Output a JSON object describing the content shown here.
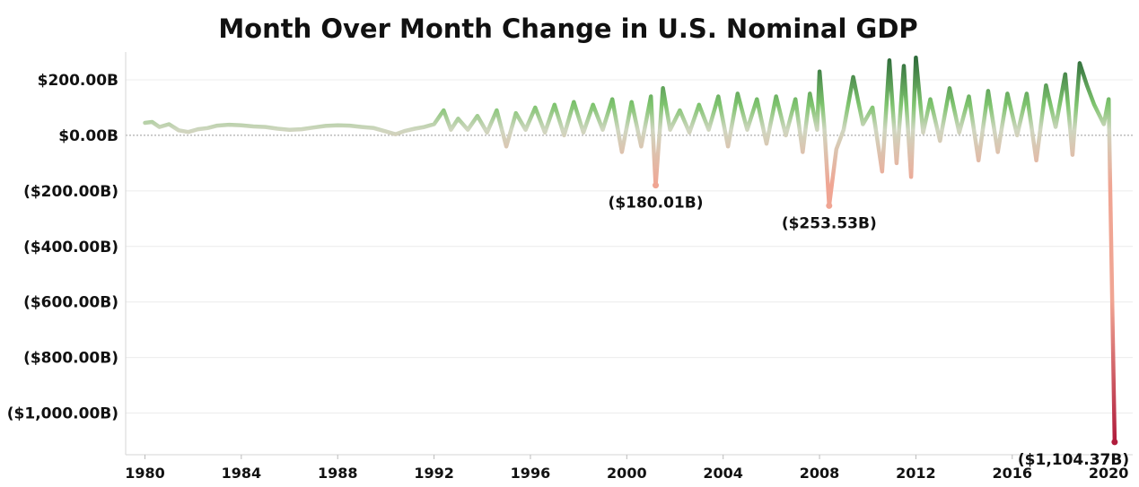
{
  "chart_data": {
    "type": "line",
    "title": "Month Over Month Change in U.S. Nominal GDP",
    "ylabel": "",
    "xlabel": "",
    "ylim": [
      -1150,
      300
    ],
    "xlim": [
      1979.2,
      2021.0
    ],
    "y_ticks": [
      200,
      0,
      -200,
      -400,
      -600,
      -800,
      -1000
    ],
    "y_tick_labels": [
      "$200.00B",
      "$0.00B",
      "($200.00B)",
      "($400.00B)",
      "($600.00B)",
      "($800.00B)",
      "($1,000.00B)"
    ],
    "x_ticks": [
      1980,
      1984,
      1988,
      1992,
      1996,
      2000,
      2004,
      2008,
      2012,
      2016,
      2020
    ],
    "x_tick_labels": [
      "1980",
      "1984",
      "1988",
      "1992",
      "1996",
      "2000",
      "2004",
      "2008",
      "2012",
      "2016",
      "2020"
    ],
    "grid": true,
    "color_scale": {
      "positive_high": "#2e6b3a",
      "positive": "#7ec46e",
      "near_zero": "#cfd6c0",
      "negative": "#f0a593",
      "extreme_negative": "#b01c3c"
    },
    "series": [
      {
        "values": [
          [
            1980.0,
            45
          ],
          [
            1980.3,
            48
          ],
          [
            1980.6,
            30
          ],
          [
            1981.0,
            40
          ],
          [
            1981.4,
            18
          ],
          [
            1981.8,
            12
          ],
          [
            1982.2,
            22
          ],
          [
            1982.6,
            26
          ],
          [
            1983.0,
            35
          ],
          [
            1983.5,
            38
          ],
          [
            1984.0,
            36
          ],
          [
            1984.5,
            32
          ],
          [
            1985.0,
            30
          ],
          [
            1985.5,
            24
          ],
          [
            1986.0,
            20
          ],
          [
            1986.5,
            22
          ],
          [
            1987.0,
            28
          ],
          [
            1987.5,
            34
          ],
          [
            1988.0,
            36
          ],
          [
            1988.5,
            35
          ],
          [
            1989.0,
            30
          ],
          [
            1989.5,
            26
          ],
          [
            1990.0,
            14
          ],
          [
            1990.4,
            4
          ],
          [
            1990.8,
            16
          ],
          [
            1991.2,
            24
          ],
          [
            1991.6,
            30
          ],
          [
            1992.0,
            40
          ],
          [
            1992.4,
            90
          ],
          [
            1992.7,
            20
          ],
          [
            1993.0,
            60
          ],
          [
            1993.4,
            20
          ],
          [
            1993.8,
            70
          ],
          [
            1994.2,
            10
          ],
          [
            1994.6,
            90
          ],
          [
            1995.0,
            -40
          ],
          [
            1995.4,
            80
          ],
          [
            1995.8,
            20
          ],
          [
            1996.2,
            100
          ],
          [
            1996.6,
            10
          ],
          [
            1997.0,
            110
          ],
          [
            1997.4,
            0
          ],
          [
            1997.8,
            120
          ],
          [
            1998.2,
            10
          ],
          [
            1998.6,
            110
          ],
          [
            1999.0,
            20
          ],
          [
            1999.4,
            130
          ],
          [
            1999.8,
            -60
          ],
          [
            2000.2,
            120
          ],
          [
            2000.6,
            -40
          ],
          [
            2001.0,
            140
          ],
          [
            2001.2,
            -180.01
          ],
          [
            2001.5,
            170
          ],
          [
            2001.8,
            20
          ],
          [
            2002.2,
            90
          ],
          [
            2002.6,
            10
          ],
          [
            2003.0,
            110
          ],
          [
            2003.4,
            20
          ],
          [
            2003.8,
            140
          ],
          [
            2004.2,
            -40
          ],
          [
            2004.6,
            150
          ],
          [
            2005.0,
            20
          ],
          [
            2005.4,
            130
          ],
          [
            2005.8,
            -30
          ],
          [
            2006.2,
            140
          ],
          [
            2006.6,
            0
          ],
          [
            2007.0,
            130
          ],
          [
            2007.3,
            -60
          ],
          [
            2007.6,
            150
          ],
          [
            2007.9,
            20
          ],
          [
            2008.0,
            230
          ],
          [
            2008.2,
            30
          ],
          [
            2008.4,
            -253.53
          ],
          [
            2008.7,
            -50
          ],
          [
            2009.0,
            20
          ],
          [
            2009.4,
            210
          ],
          [
            2009.8,
            40
          ],
          [
            2010.2,
            100
          ],
          [
            2010.6,
            -130
          ],
          [
            2010.9,
            270
          ],
          [
            2011.2,
            -100
          ],
          [
            2011.5,
            250
          ],
          [
            2011.8,
            -150
          ],
          [
            2012.0,
            280
          ],
          [
            2012.3,
            10
          ],
          [
            2012.6,
            130
          ],
          [
            2013.0,
            -20
          ],
          [
            2013.4,
            170
          ],
          [
            2013.8,
            10
          ],
          [
            2014.2,
            140
          ],
          [
            2014.6,
            -90
          ],
          [
            2015.0,
            160
          ],
          [
            2015.4,
            -60
          ],
          [
            2015.8,
            150
          ],
          [
            2016.2,
            0
          ],
          [
            2016.6,
            150
          ],
          [
            2017.0,
            -90
          ],
          [
            2017.4,
            180
          ],
          [
            2017.8,
            30
          ],
          [
            2018.2,
            220
          ],
          [
            2018.5,
            -70
          ],
          [
            2018.8,
            260
          ],
          [
            2019.1,
            180
          ],
          [
            2019.4,
            110
          ],
          [
            2019.8,
            40
          ],
          [
            2020.0,
            130
          ],
          [
            2020.25,
            -1104.37
          ]
        ]
      }
    ],
    "annotations": [
      {
        "x": 2001.2,
        "y": -180.01,
        "label": "($180.01B)"
      },
      {
        "x": 2008.4,
        "y": -253.53,
        "label": "($253.53B)"
      },
      {
        "x": 2020.25,
        "y": -1104.37,
        "label": "($1,104.37B)"
      }
    ]
  }
}
